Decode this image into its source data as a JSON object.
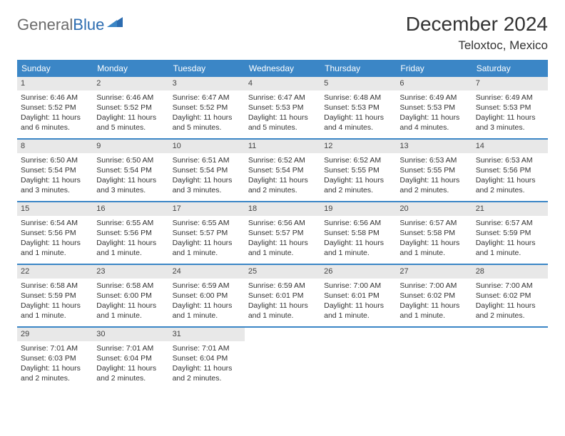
{
  "logo": {
    "text1": "General",
    "text2": "Blue"
  },
  "title": "December 2024",
  "location": "Teloxtoc, Mexico",
  "colors": {
    "header_bg": "#3b86c6",
    "header_fg": "#ffffff",
    "daynum_bg": "#e8e8e8",
    "week_divider": "#3b86c6",
    "logo_gray": "#6b6b6b",
    "logo_blue": "#2c6cb0"
  },
  "dow": [
    "Sunday",
    "Monday",
    "Tuesday",
    "Wednesday",
    "Thursday",
    "Friday",
    "Saturday"
  ],
  "weeks": [
    [
      {
        "n": "1",
        "sunrise": "Sunrise: 6:46 AM",
        "sunset": "Sunset: 5:52 PM",
        "day": "Daylight: 11 hours and 6 minutes."
      },
      {
        "n": "2",
        "sunrise": "Sunrise: 6:46 AM",
        "sunset": "Sunset: 5:52 PM",
        "day": "Daylight: 11 hours and 5 minutes."
      },
      {
        "n": "3",
        "sunrise": "Sunrise: 6:47 AM",
        "sunset": "Sunset: 5:52 PM",
        "day": "Daylight: 11 hours and 5 minutes."
      },
      {
        "n": "4",
        "sunrise": "Sunrise: 6:47 AM",
        "sunset": "Sunset: 5:53 PM",
        "day": "Daylight: 11 hours and 5 minutes."
      },
      {
        "n": "5",
        "sunrise": "Sunrise: 6:48 AM",
        "sunset": "Sunset: 5:53 PM",
        "day": "Daylight: 11 hours and 4 minutes."
      },
      {
        "n": "6",
        "sunrise": "Sunrise: 6:49 AM",
        "sunset": "Sunset: 5:53 PM",
        "day": "Daylight: 11 hours and 4 minutes."
      },
      {
        "n": "7",
        "sunrise": "Sunrise: 6:49 AM",
        "sunset": "Sunset: 5:53 PM",
        "day": "Daylight: 11 hours and 3 minutes."
      }
    ],
    [
      {
        "n": "8",
        "sunrise": "Sunrise: 6:50 AM",
        "sunset": "Sunset: 5:54 PM",
        "day": "Daylight: 11 hours and 3 minutes."
      },
      {
        "n": "9",
        "sunrise": "Sunrise: 6:50 AM",
        "sunset": "Sunset: 5:54 PM",
        "day": "Daylight: 11 hours and 3 minutes."
      },
      {
        "n": "10",
        "sunrise": "Sunrise: 6:51 AM",
        "sunset": "Sunset: 5:54 PM",
        "day": "Daylight: 11 hours and 3 minutes."
      },
      {
        "n": "11",
        "sunrise": "Sunrise: 6:52 AM",
        "sunset": "Sunset: 5:54 PM",
        "day": "Daylight: 11 hours and 2 minutes."
      },
      {
        "n": "12",
        "sunrise": "Sunrise: 6:52 AM",
        "sunset": "Sunset: 5:55 PM",
        "day": "Daylight: 11 hours and 2 minutes."
      },
      {
        "n": "13",
        "sunrise": "Sunrise: 6:53 AM",
        "sunset": "Sunset: 5:55 PM",
        "day": "Daylight: 11 hours and 2 minutes."
      },
      {
        "n": "14",
        "sunrise": "Sunrise: 6:53 AM",
        "sunset": "Sunset: 5:56 PM",
        "day": "Daylight: 11 hours and 2 minutes."
      }
    ],
    [
      {
        "n": "15",
        "sunrise": "Sunrise: 6:54 AM",
        "sunset": "Sunset: 5:56 PM",
        "day": "Daylight: 11 hours and 1 minute."
      },
      {
        "n": "16",
        "sunrise": "Sunrise: 6:55 AM",
        "sunset": "Sunset: 5:56 PM",
        "day": "Daylight: 11 hours and 1 minute."
      },
      {
        "n": "17",
        "sunrise": "Sunrise: 6:55 AM",
        "sunset": "Sunset: 5:57 PM",
        "day": "Daylight: 11 hours and 1 minute."
      },
      {
        "n": "18",
        "sunrise": "Sunrise: 6:56 AM",
        "sunset": "Sunset: 5:57 PM",
        "day": "Daylight: 11 hours and 1 minute."
      },
      {
        "n": "19",
        "sunrise": "Sunrise: 6:56 AM",
        "sunset": "Sunset: 5:58 PM",
        "day": "Daylight: 11 hours and 1 minute."
      },
      {
        "n": "20",
        "sunrise": "Sunrise: 6:57 AM",
        "sunset": "Sunset: 5:58 PM",
        "day": "Daylight: 11 hours and 1 minute."
      },
      {
        "n": "21",
        "sunrise": "Sunrise: 6:57 AM",
        "sunset": "Sunset: 5:59 PM",
        "day": "Daylight: 11 hours and 1 minute."
      }
    ],
    [
      {
        "n": "22",
        "sunrise": "Sunrise: 6:58 AM",
        "sunset": "Sunset: 5:59 PM",
        "day": "Daylight: 11 hours and 1 minute."
      },
      {
        "n": "23",
        "sunrise": "Sunrise: 6:58 AM",
        "sunset": "Sunset: 6:00 PM",
        "day": "Daylight: 11 hours and 1 minute."
      },
      {
        "n": "24",
        "sunrise": "Sunrise: 6:59 AM",
        "sunset": "Sunset: 6:00 PM",
        "day": "Daylight: 11 hours and 1 minute."
      },
      {
        "n": "25",
        "sunrise": "Sunrise: 6:59 AM",
        "sunset": "Sunset: 6:01 PM",
        "day": "Daylight: 11 hours and 1 minute."
      },
      {
        "n": "26",
        "sunrise": "Sunrise: 7:00 AM",
        "sunset": "Sunset: 6:01 PM",
        "day": "Daylight: 11 hours and 1 minute."
      },
      {
        "n": "27",
        "sunrise": "Sunrise: 7:00 AM",
        "sunset": "Sunset: 6:02 PM",
        "day": "Daylight: 11 hours and 1 minute."
      },
      {
        "n": "28",
        "sunrise": "Sunrise: 7:00 AM",
        "sunset": "Sunset: 6:02 PM",
        "day": "Daylight: 11 hours and 2 minutes."
      }
    ],
    [
      {
        "n": "29",
        "sunrise": "Sunrise: 7:01 AM",
        "sunset": "Sunset: 6:03 PM",
        "day": "Daylight: 11 hours and 2 minutes."
      },
      {
        "n": "30",
        "sunrise": "Sunrise: 7:01 AM",
        "sunset": "Sunset: 6:04 PM",
        "day": "Daylight: 11 hours and 2 minutes."
      },
      {
        "n": "31",
        "sunrise": "Sunrise: 7:01 AM",
        "sunset": "Sunset: 6:04 PM",
        "day": "Daylight: 11 hours and 2 minutes."
      },
      null,
      null,
      null,
      null
    ]
  ]
}
